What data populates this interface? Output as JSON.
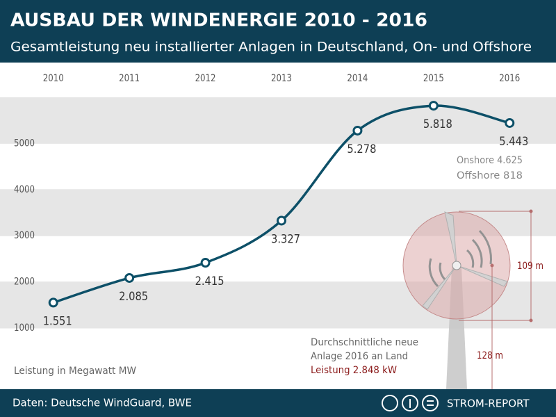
{
  "chart_data": {
    "type": "line",
    "title": "AUSBAU DER WINDENERGIE 2010 - 2016",
    "subtitle": "Gesamtleistung neu installierter Anlagen in Deutschland, On- und Offshore",
    "categories": [
      "2010",
      "2011",
      "2012",
      "2013",
      "2014",
      "2015",
      "2016"
    ],
    "series": [
      {
        "name": "Leistung",
        "color": "#0d5068",
        "values": [
          1551,
          2085,
          2415,
          3327,
          5278,
          5818,
          5443
        ],
        "value_labels": [
          "1.551",
          "2.085",
          "2.415",
          "3.327",
          "5.278",
          "5.818",
          "5.443"
        ]
      }
    ],
    "ylim": [
      1000,
      6000
    ],
    "yticks": [
      1000,
      2000,
      3000,
      4000,
      5000
    ],
    "grid": true,
    "annotations": [
      "Onshore 4.625",
      "Offshore   818",
      "Leistung in Megawatt MW",
      "Durchschnittliche neue",
      "Anlage 2016 an Land",
      "Leistung 2.848 kW",
      "109 m",
      "128 m"
    ],
    "source": "Daten: Deutsche WindGuard, BWE",
    "brand": "STROM-REPORT"
  }
}
